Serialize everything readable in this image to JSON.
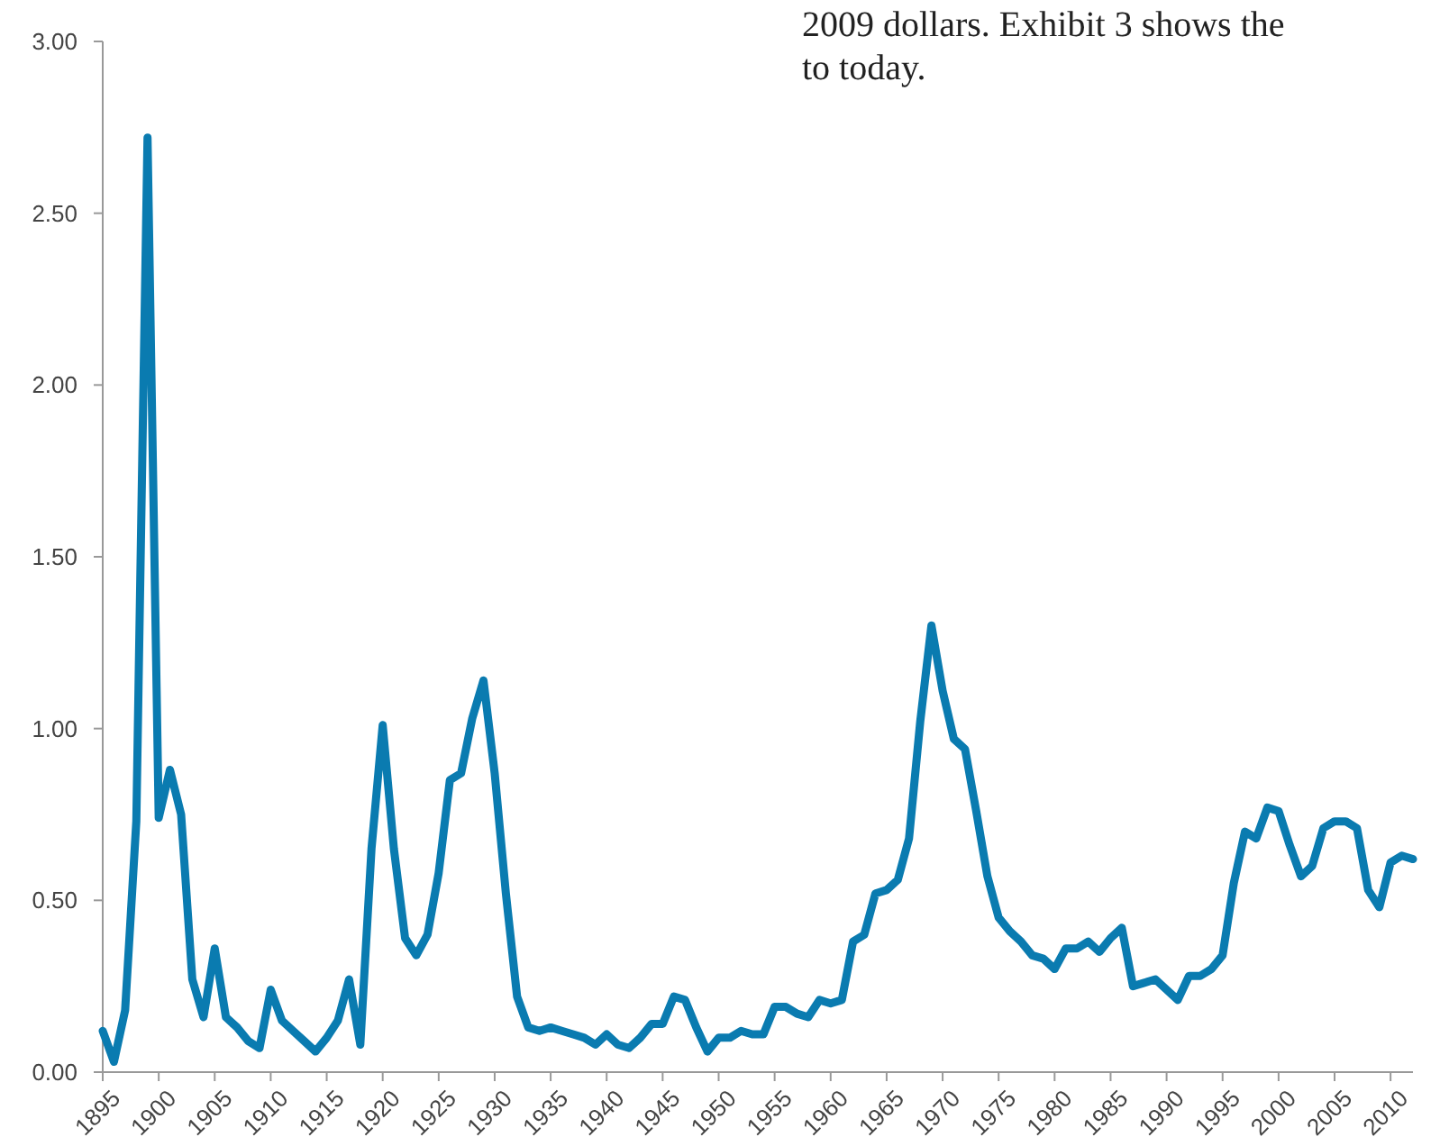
{
  "chart_data": {
    "type": "line",
    "annotations": [
      "2009 dollars. Exhibit 3 shows the",
      "to today."
    ],
    "x": [
      1895,
      1896,
      1897,
      1898,
      1899,
      1900,
      1901,
      1902,
      1903,
      1904,
      1905,
      1906,
      1907,
      1908,
      1909,
      1910,
      1911,
      1912,
      1913,
      1914,
      1915,
      1916,
      1917,
      1918,
      1919,
      1920,
      1921,
      1922,
      1923,
      1924,
      1925,
      1926,
      1927,
      1928,
      1929,
      1930,
      1931,
      1932,
      1933,
      1934,
      1935,
      1936,
      1937,
      1938,
      1939,
      1940,
      1941,
      1942,
      1943,
      1944,
      1945,
      1946,
      1947,
      1948,
      1949,
      1950,
      1951,
      1952,
      1953,
      1954,
      1955,
      1956,
      1957,
      1958,
      1959,
      1960,
      1961,
      1962,
      1963,
      1964,
      1965,
      1966,
      1967,
      1968,
      1969,
      1970,
      1971,
      1972,
      1973,
      1974,
      1975,
      1976,
      1977,
      1978,
      1979,
      1980,
      1981,
      1982,
      1983,
      1984,
      1985,
      1986,
      1987,
      1988,
      1989,
      1990,
      1991,
      1992,
      1993,
      1994,
      1995,
      1996,
      1997,
      1998,
      1999,
      2000,
      2001,
      2002,
      2003,
      2004,
      2005,
      2006,
      2007,
      2008,
      2009,
      2010,
      2011,
      2012
    ],
    "series": [
      {
        "color": "#0a7bb0",
        "values": [
          0.12,
          0.03,
          0.18,
          0.73,
          2.72,
          0.74,
          0.88,
          0.75,
          0.27,
          0.16,
          0.36,
          0.16,
          0.13,
          0.09,
          0.07,
          0.24,
          0.15,
          0.12,
          0.09,
          0.06,
          0.1,
          0.15,
          0.27,
          0.08,
          0.65,
          1.01,
          0.65,
          0.39,
          0.34,
          0.4,
          0.58,
          0.85,
          0.87,
          1.03,
          1.14,
          0.87,
          0.52,
          0.22,
          0.13,
          0.12,
          0.13,
          0.12,
          0.11,
          0.1,
          0.08,
          0.11,
          0.08,
          0.07,
          0.1,
          0.14,
          0.14,
          0.22,
          0.21,
          0.13,
          0.06,
          0.1,
          0.1,
          0.12,
          0.11,
          0.11,
          0.19,
          0.19,
          0.17,
          0.16,
          0.21,
          0.2,
          0.21,
          0.38,
          0.4,
          0.52,
          0.53,
          0.56,
          0.68,
          1.02,
          1.3,
          1.11,
          0.97,
          0.94,
          0.76,
          0.57,
          0.45,
          0.41,
          0.38,
          0.34,
          0.33,
          0.3,
          0.36,
          0.36,
          0.38,
          0.35,
          0.39,
          0.42,
          0.25,
          0.26,
          0.27,
          0.24,
          0.21,
          0.28,
          0.28,
          0.3,
          0.34,
          0.55,
          0.7,
          0.68,
          0.77,
          0.76,
          0.66,
          0.57,
          0.6,
          0.71,
          0.73,
          0.73,
          0.71,
          0.53,
          0.48,
          0.61,
          0.63,
          0.62
        ]
      }
    ],
    "xlim": [
      1895,
      2012
    ],
    "xticks": [
      1895,
      1900,
      1905,
      1910,
      1915,
      1920,
      1925,
      1930,
      1935,
      1940,
      1945,
      1950,
      1955,
      1960,
      1965,
      1970,
      1975,
      1980,
      1985,
      1990,
      1995,
      2000,
      2005,
      2010
    ],
    "ylim": [
      0,
      3
    ],
    "yticks": [
      {
        "value": 0,
        "label": "0.00"
      },
      {
        "value": 0.5,
        "label": "0.50"
      },
      {
        "value": 1,
        "label": "1.00"
      },
      {
        "value": 1.5,
        "label": "1.50"
      },
      {
        "value": 2,
        "label": "2.00"
      },
      {
        "value": 2.5,
        "label": "2.50"
      },
      {
        "value": 3,
        "label": "3.00"
      }
    ],
    "grid": false,
    "marker": "none",
    "line_style": "solid"
  }
}
